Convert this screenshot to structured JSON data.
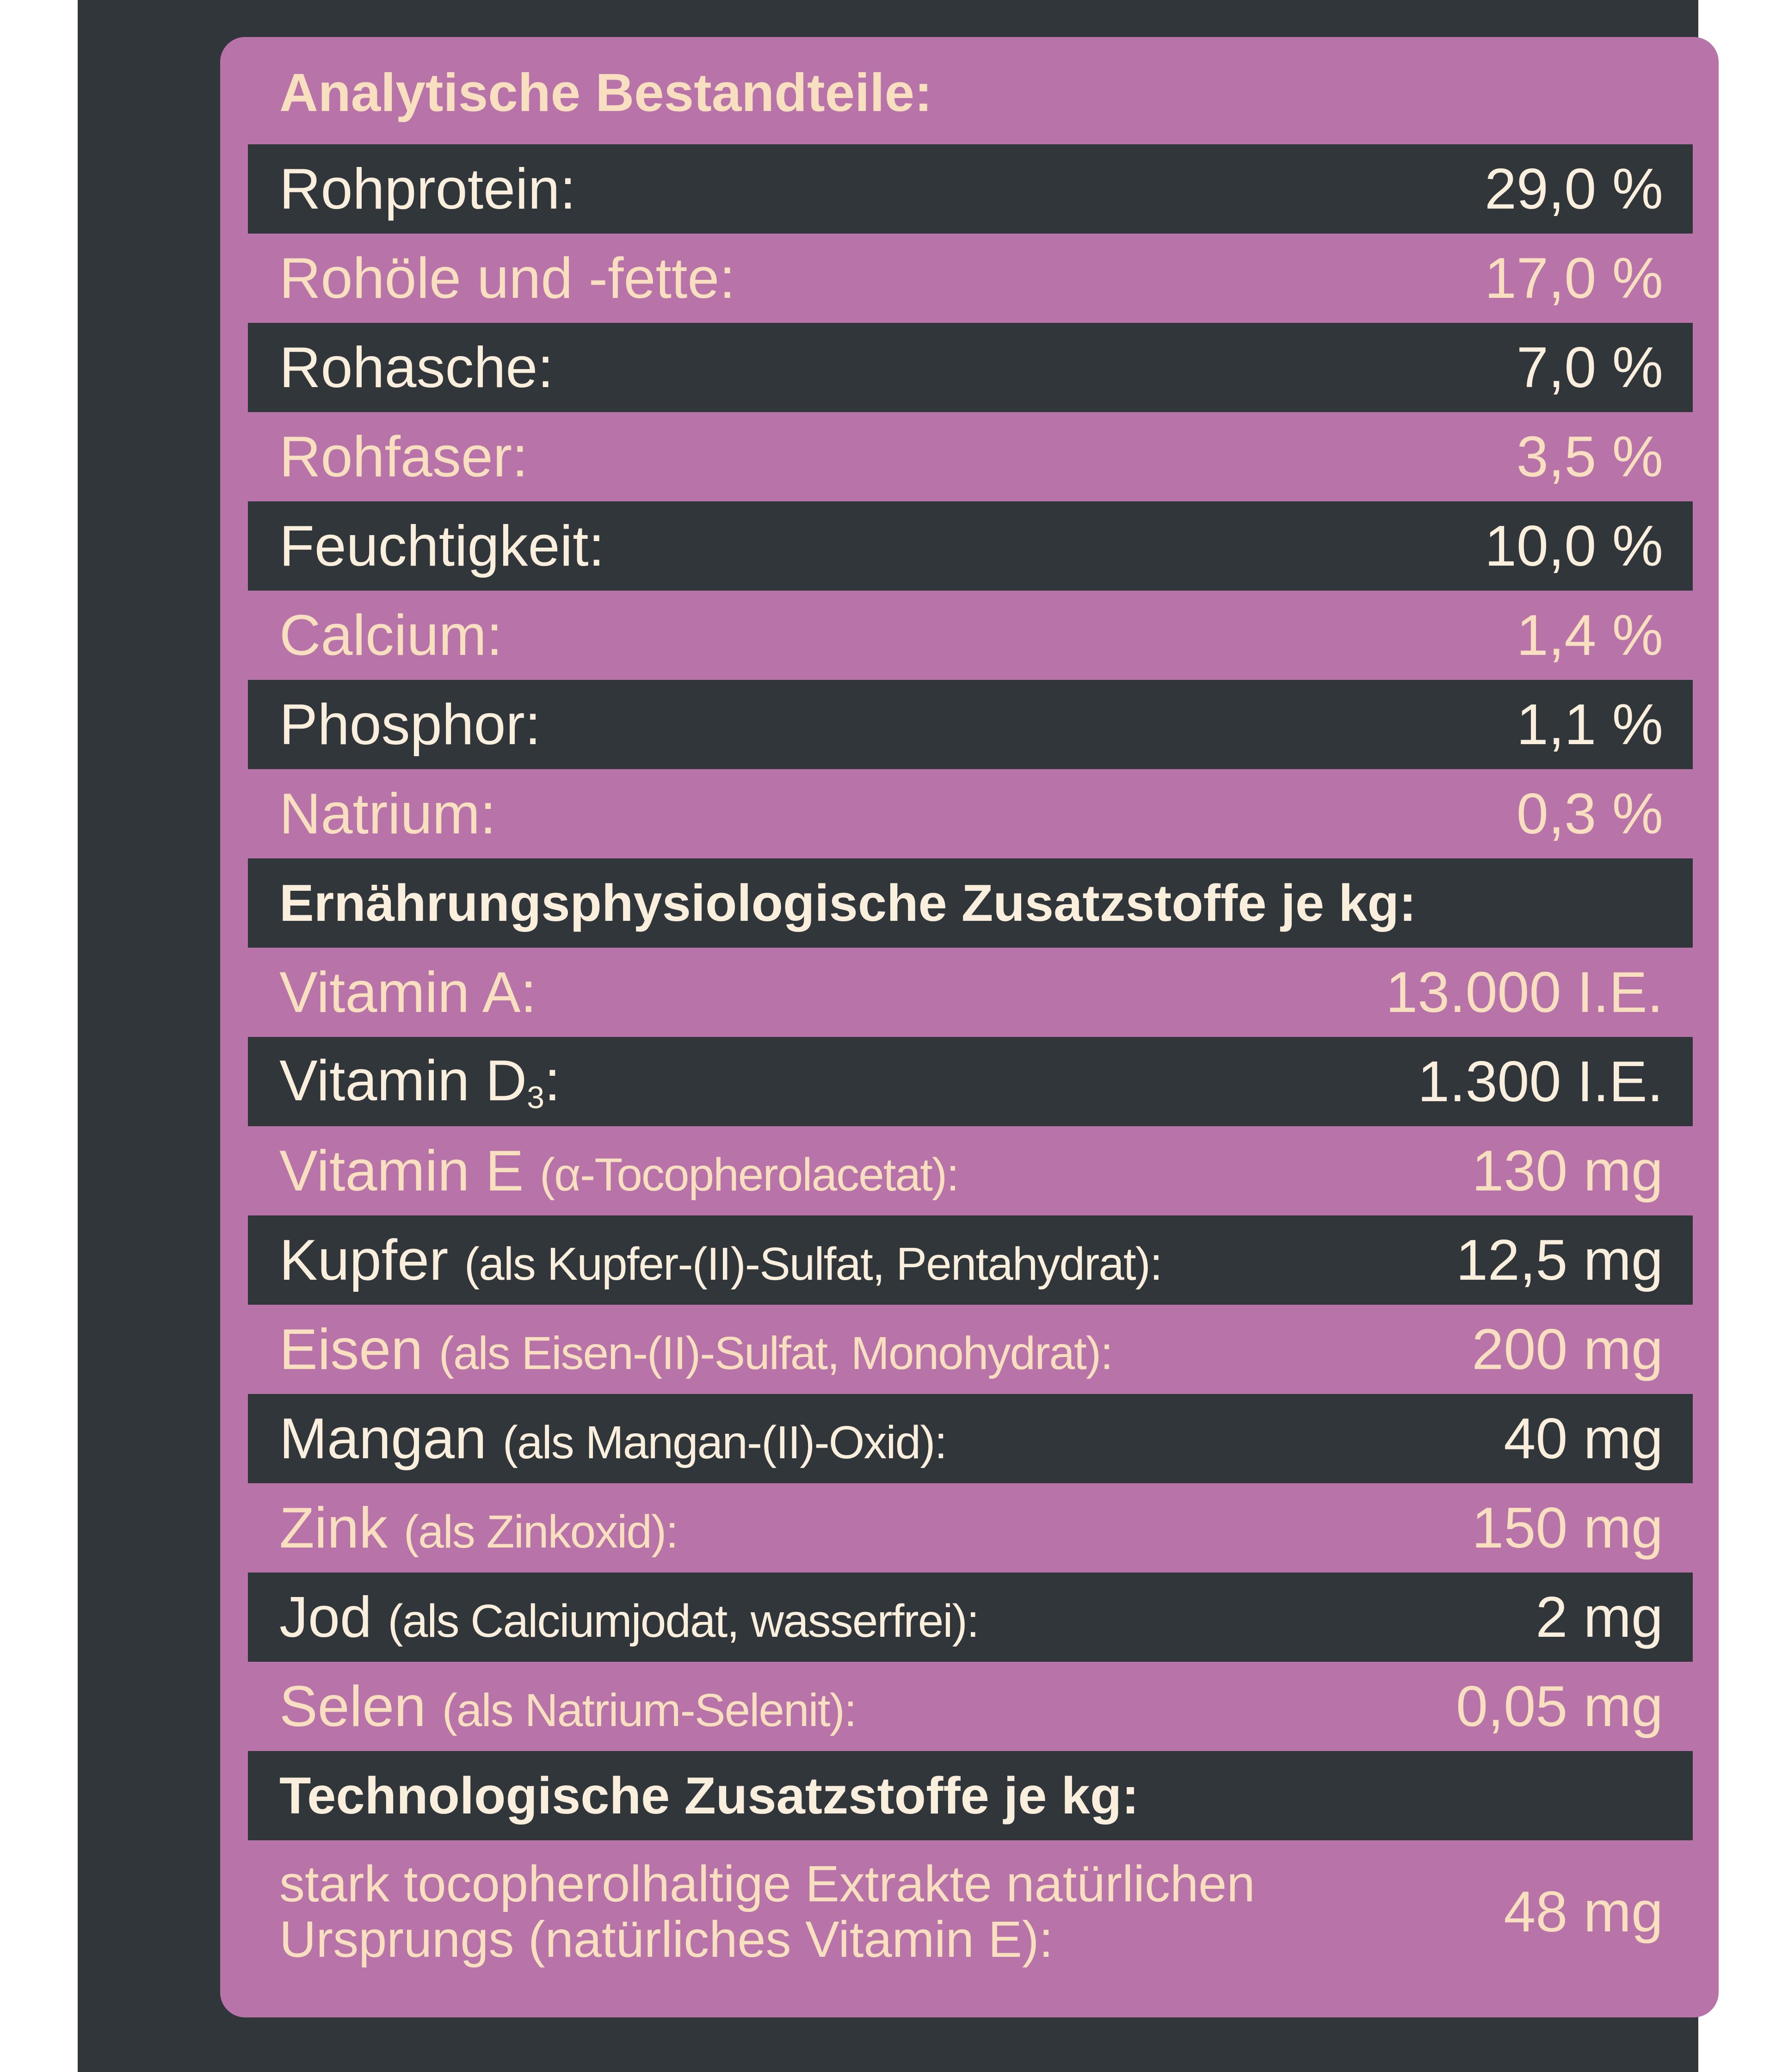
{
  "sections": {
    "analytic_title": "Analytische Bestandteile:",
    "nutritional_title": "Ernährungsphysiologische Zusatzstoffe je kg:",
    "technological_title": "Technologische Zusatzstoffe je kg:"
  },
  "analytic": [
    {
      "label": "Rohprotein:",
      "value": "29,0 %"
    },
    {
      "label": "Rohöle und -fette:",
      "value": "17,0 %"
    },
    {
      "label": "Rohasche:",
      "value": "7,0 %"
    },
    {
      "label": "Rohfaser:",
      "value": "3,5 %"
    },
    {
      "label": "Feuchtigkeit:",
      "value": "10,0 %"
    },
    {
      "label": "Calcium:",
      "value": "1,4 %"
    },
    {
      "label": "Phosphor:",
      "value": "1,1 %"
    },
    {
      "label": "Natrium:",
      "value": "0,3 %"
    }
  ],
  "nutritional": [
    {
      "name": "Vitamin A:",
      "detail": "",
      "value": "13.000 I.E."
    },
    {
      "name": "Vitamin D",
      "sub": "3",
      "suffix": ":",
      "value": "1.300 I.E."
    },
    {
      "name": "Vitamin E",
      "detail": "(α-Tocopherolacetat):",
      "value": "130 mg"
    },
    {
      "name": "Kupfer",
      "detail": "(als Kupfer-(II)-Sulfat, Pentahydrat):",
      "value": "12,5 mg"
    },
    {
      "name": "Eisen",
      "detail": "(als Eisen-(II)-Sulfat, Monohydrat):",
      "value": "200 mg"
    },
    {
      "name": "Mangan",
      "detail": "(als Mangan-(II)-Oxid):",
      "value": "40 mg"
    },
    {
      "name": "Zink",
      "detail": "(als Zinkoxid):",
      "value": "150 mg"
    },
    {
      "name": "Jod",
      "detail": "(als Calciumjodat, wasserfrei):",
      "value": "2 mg"
    },
    {
      "name": "Selen",
      "detail": "(als Natrium-Selenit):",
      "value": "0,05 mg"
    }
  ],
  "technological": [
    {
      "label_line1": "stark tocopherolhaltige Extrakte natürlichen",
      "label_line2": "Ursprungs (natürliches Vitamin E):",
      "value": "48 mg"
    }
  ],
  "colors": {
    "background": "#30363a",
    "panel": "#b874a8",
    "text": "#f8dfc0"
  }
}
